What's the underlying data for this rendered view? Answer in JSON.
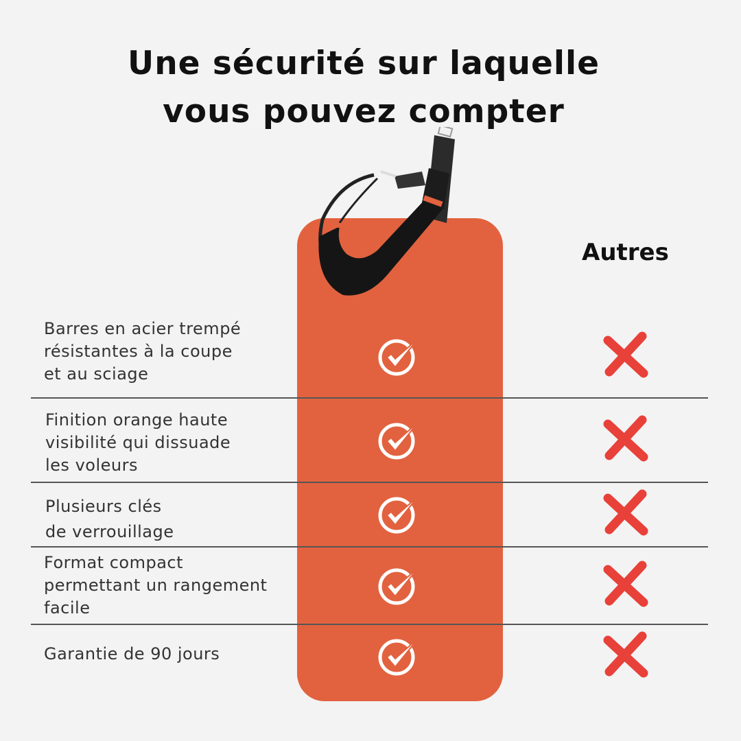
{
  "title": {
    "line1": "Une sécurité sur laquelle",
    "line2": "vous pouvez compter"
  },
  "competitor_column_label": "Autres",
  "colors": {
    "brand_orange": "#e2623f",
    "cross_red": "#e8413a",
    "background": "#f3f3f3"
  },
  "features": [
    {
      "lines": [
        "Barres en acier trempé",
        "résistantes à la coupe",
        "et au sciage"
      ],
      "ours": "check-icon",
      "others": "cross-icon"
    },
    {
      "lines": [
        "Finition orange haute",
        "visibilité qui dissuade",
        "les voleurs"
      ],
      "ours": "check-icon",
      "others": "cross-icon"
    },
    {
      "lines": [
        "Plusieurs clés",
        "de verrouillage"
      ],
      "ours": "check-icon",
      "others": "cross-icon"
    },
    {
      "lines": [
        "Format compact",
        "permettant un rangement",
        "facile"
      ],
      "ours": "check-icon",
      "others": "cross-icon"
    },
    {
      "lines": [
        "Garantie de 90 jours"
      ],
      "ours": "check-icon",
      "others": "cross-icon"
    }
  ]
}
